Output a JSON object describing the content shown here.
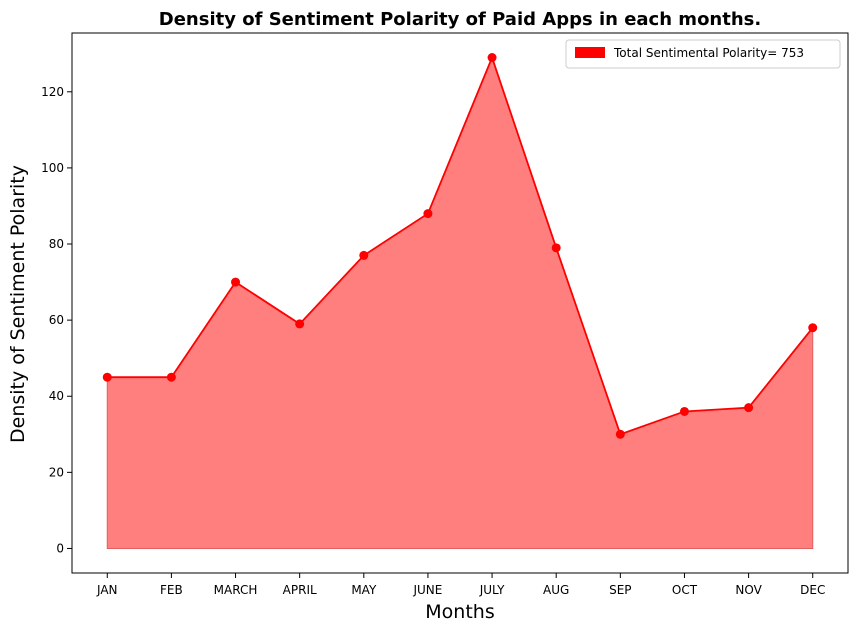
{
  "chart_data": {
    "type": "area",
    "title": "Density of Sentiment Polarity of Paid Apps in each months.",
    "xlabel": "Months",
    "ylabel": "Density of Sentiment Polarity",
    "categories": [
      "JAN",
      "FEB",
      "MARCH",
      "APRIL",
      "MAY",
      "JUNE",
      "JULY",
      "AUG",
      "SEP",
      "OCT",
      "NOV",
      "DEC"
    ],
    "series": [
      {
        "name": "Total Sentimental Polarity= 753",
        "values": [
          45,
          45,
          70,
          59,
          77,
          88,
          129,
          79,
          30,
          36,
          37,
          58
        ]
      }
    ],
    "yticks": [
      0,
      20,
      40,
      60,
      80,
      100,
      120
    ],
    "ylim": [
      -6.45,
      135.45
    ],
    "grid": false,
    "legend_position": "top-right",
    "colors": {
      "line": "#ff0000",
      "marker": "#ff0000",
      "fill": "#ff7f7f",
      "legend_patch": "#ff0000"
    }
  }
}
